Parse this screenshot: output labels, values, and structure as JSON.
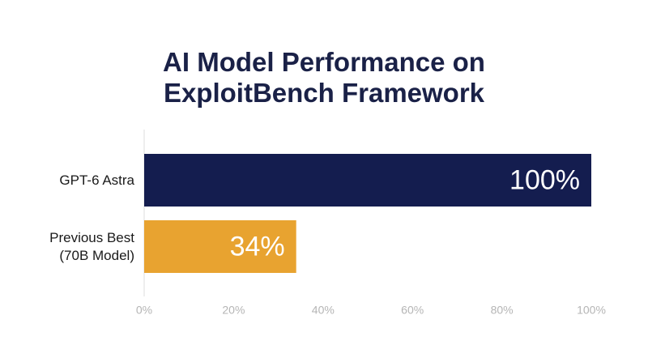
{
  "chart_data": {
    "type": "bar",
    "orientation": "horizontal",
    "title": [
      "AI Model Performance on",
      "ExploitBench Framework"
    ],
    "categories": [
      "GPT-6 Astra",
      "Previous Best (70B Model)"
    ],
    "values": [
      100,
      34
    ],
    "value_labels": [
      "100%",
      "34%"
    ],
    "colors": [
      "#141d4f",
      "#e8a330"
    ],
    "xlim": [
      0,
      100
    ],
    "xticks": [
      {
        "value": 0,
        "label": "0%"
      },
      {
        "value": 20,
        "label": "20%"
      },
      {
        "value": 40,
        "label": "40%"
      },
      {
        "value": 60,
        "label": "60%"
      },
      {
        "value": 80,
        "label": "80%"
      },
      {
        "value": 100,
        "label": "100%"
      }
    ],
    "grid": false
  }
}
